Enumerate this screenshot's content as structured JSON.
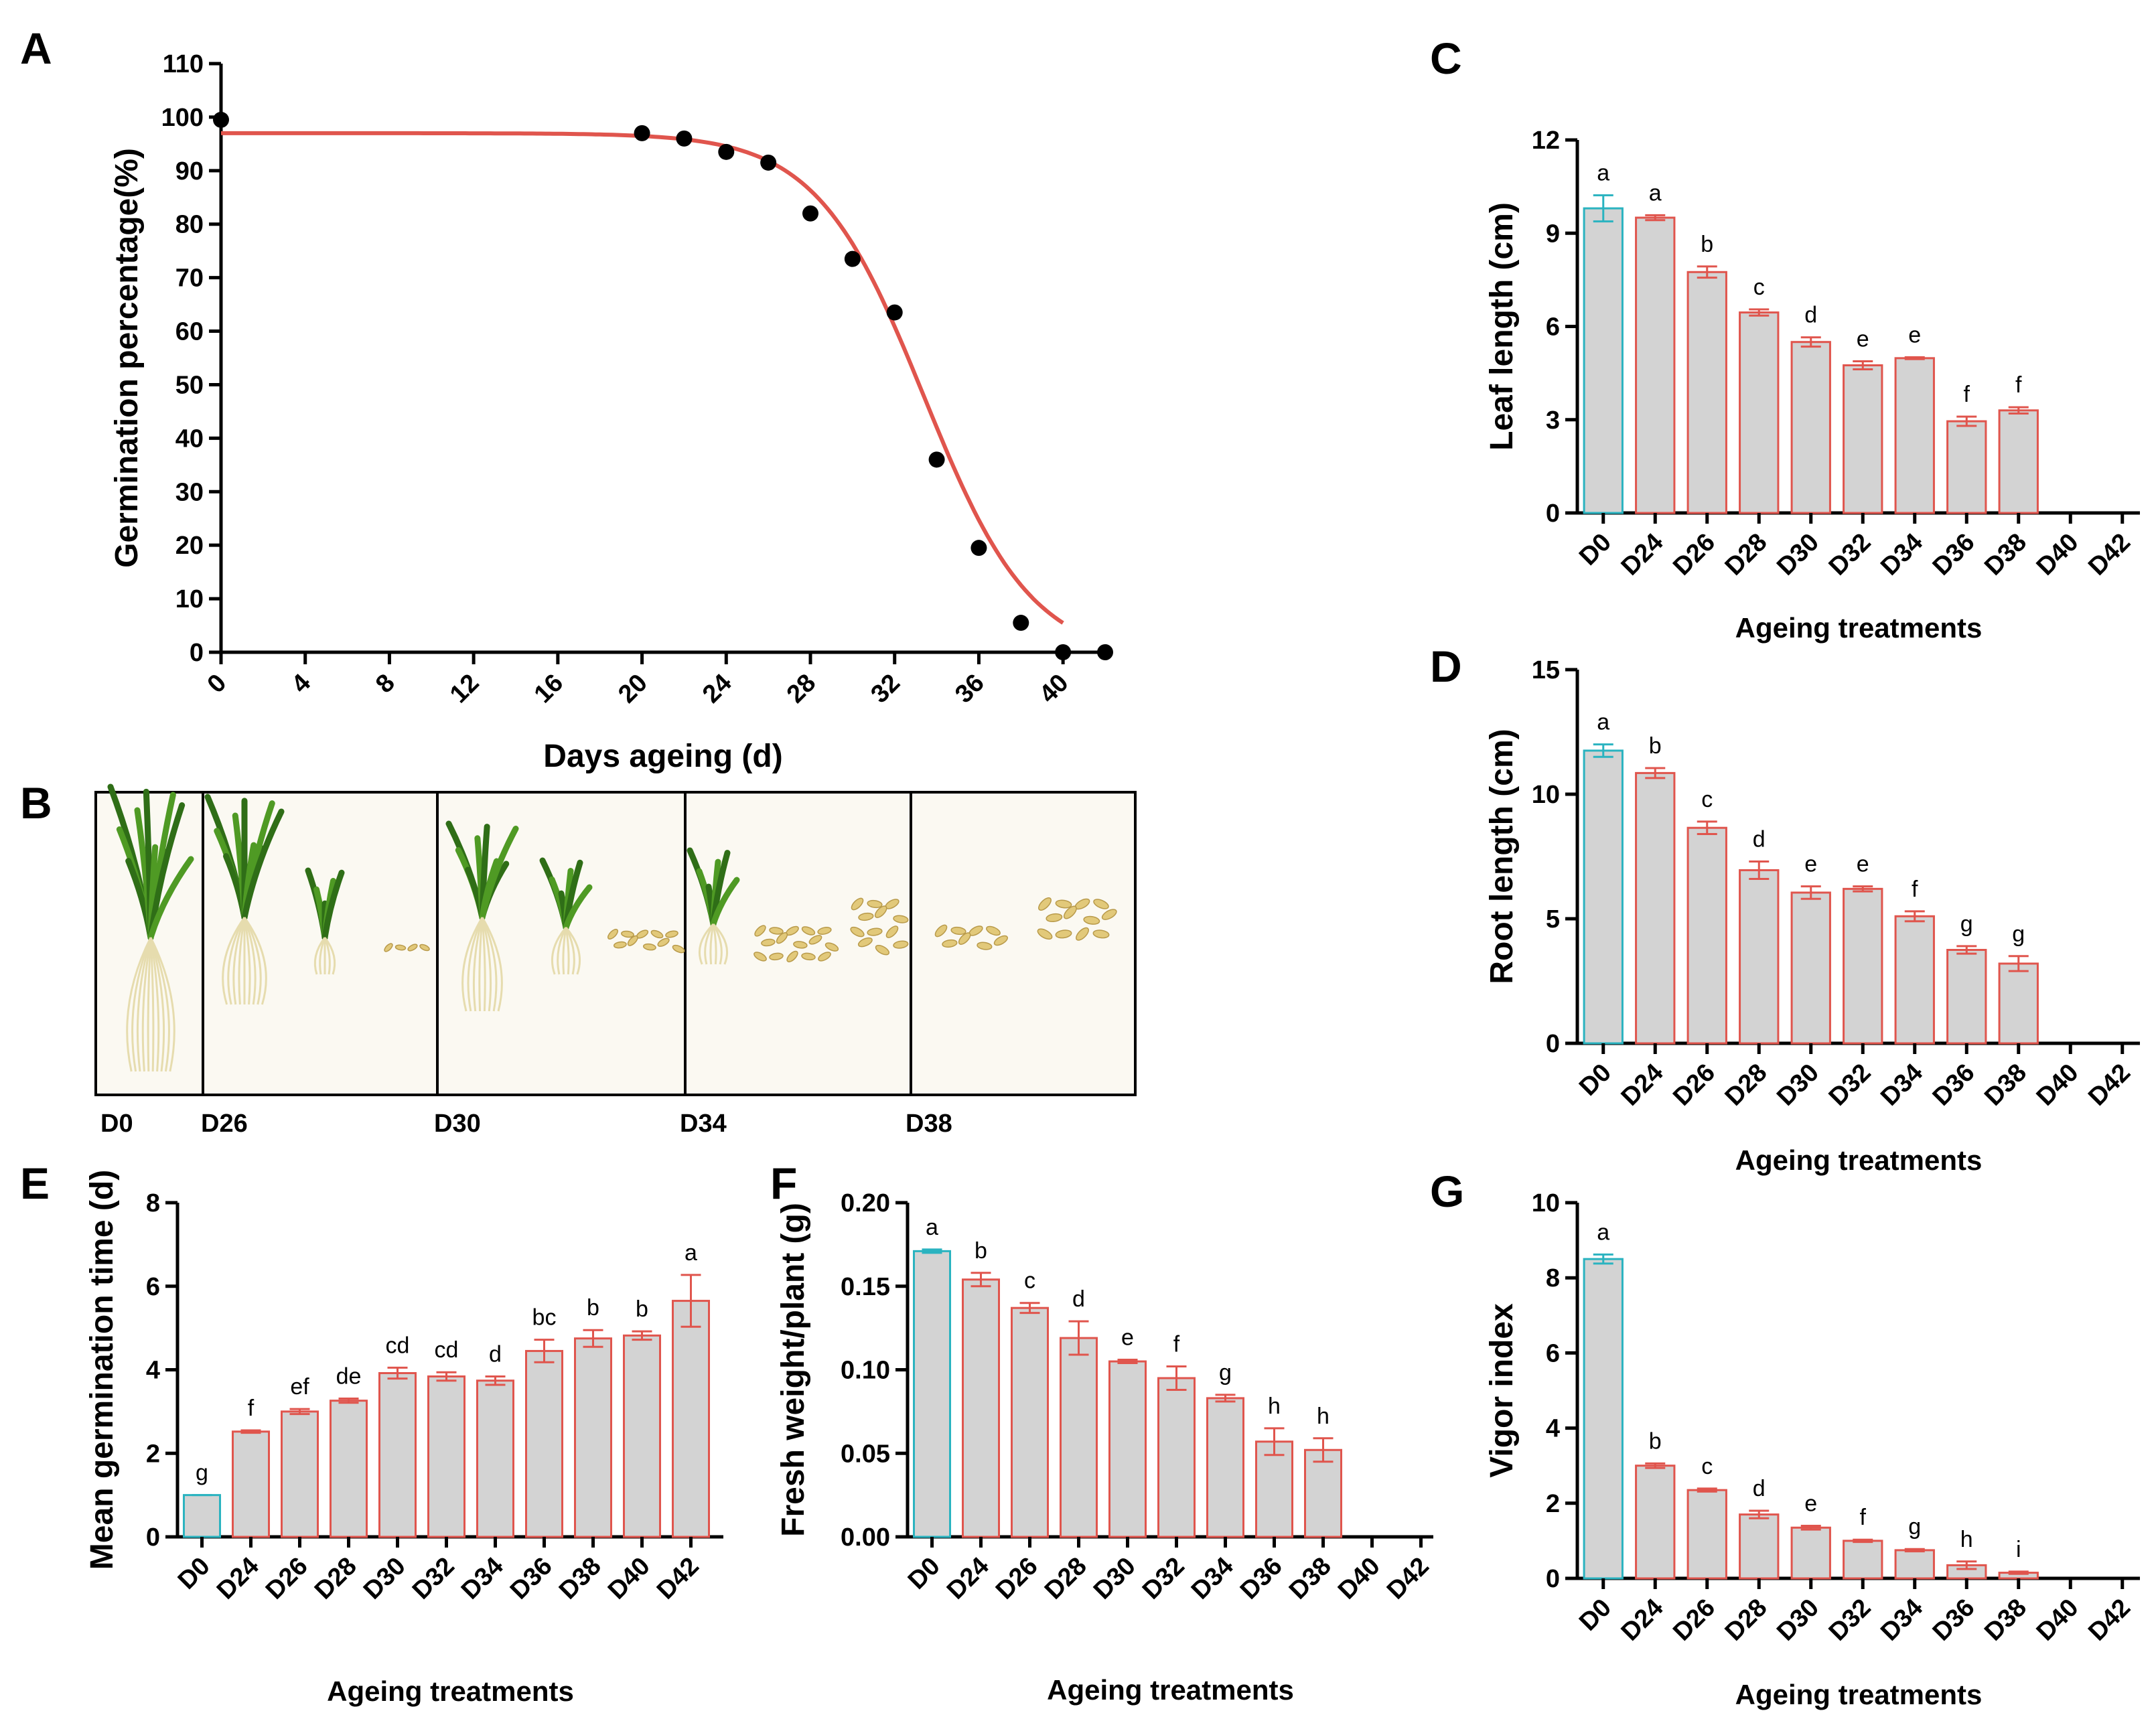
{
  "panel_labels": [
    "A",
    "B",
    "C",
    "D",
    "E",
    "F",
    "G"
  ],
  "chart_data": [
    {
      "id": "A",
      "type": "scatter",
      "title": "",
      "xlabel": "Days ageing (d)",
      "ylabel": "Germination percentage(%)",
      "xlim": [
        0,
        42
      ],
      "ylim": [
        0,
        110
      ],
      "xticks": [
        0,
        4,
        8,
        12,
        16,
        20,
        24,
        28,
        32,
        36,
        40
      ],
      "yticks": [
        0,
        10,
        20,
        30,
        40,
        50,
        60,
        70,
        80,
        90,
        100,
        110
      ],
      "x": [
        0,
        20,
        22,
        24,
        26,
        28,
        30,
        32,
        34,
        36,
        38,
        40,
        42
      ],
      "y": [
        99.5,
        97,
        96,
        93.5,
        91.5,
        82,
        73.5,
        63.5,
        36,
        19.5,
        5.5,
        0,
        0
      ],
      "fit": {
        "type": "logistic",
        "top": 97,
        "bottom": -1.5,
        "x50": 33.4,
        "slope": 0.39
      },
      "point_color": "#000000",
      "line_color": "#e0554d"
    },
    {
      "id": "C",
      "type": "bar",
      "xlabel": "Ageing treatments",
      "ylabel": "Leaf length (cm)",
      "ylim": [
        0,
        12
      ],
      "yticks": [
        0,
        3,
        6,
        9,
        12
      ],
      "categories": [
        "D0",
        "D24",
        "D26",
        "D28",
        "D30",
        "D32",
        "D34",
        "D36",
        "D38",
        "D40",
        "D42"
      ],
      "values": [
        9.8,
        9.5,
        7.75,
        6.45,
        5.5,
        4.75,
        4.98,
        2.95,
        3.3,
        0,
        0
      ],
      "errors": [
        0.42,
        0.08,
        0.18,
        0.1,
        0.15,
        0.13,
        0.03,
        0.15,
        0.1,
        0,
        0
      ],
      "letters": [
        "a",
        "a",
        "b",
        "c",
        "d",
        "e",
        "e",
        "f",
        "f",
        "",
        ""
      ]
    },
    {
      "id": "D",
      "type": "bar",
      "xlabel": "Ageing treatments",
      "ylabel": "Root length (cm)",
      "ylim": [
        0,
        15
      ],
      "yticks": [
        0,
        5,
        10,
        15
      ],
      "categories": [
        "D0",
        "D24",
        "D26",
        "D28",
        "D30",
        "D32",
        "D34",
        "D36",
        "D38",
        "D40",
        "D42"
      ],
      "values": [
        11.75,
        10.85,
        8.65,
        6.95,
        6.05,
        6.2,
        5.1,
        3.75,
        3.2,
        0,
        0
      ],
      "errors": [
        0.25,
        0.2,
        0.25,
        0.35,
        0.25,
        0.1,
        0.2,
        0.15,
        0.3,
        0,
        0
      ],
      "letters": [
        "a",
        "b",
        "c",
        "d",
        "e",
        "e",
        "f",
        "g",
        "g",
        "",
        ""
      ]
    },
    {
      "id": "E",
      "type": "bar",
      "xlabel": "Ageing treatments",
      "ylabel": "Mean germination time (d)",
      "ylim": [
        0,
        8
      ],
      "yticks": [
        0,
        2,
        4,
        6,
        8
      ],
      "categories": [
        "D0",
        "D24",
        "D26",
        "D28",
        "D30",
        "D32",
        "D34",
        "D36",
        "D38",
        "D40",
        "D42"
      ],
      "values": [
        1.0,
        2.52,
        3.0,
        3.26,
        3.92,
        3.84,
        3.74,
        4.45,
        4.75,
        4.82,
        5.65
      ],
      "errors": [
        0.0,
        0.03,
        0.06,
        0.05,
        0.13,
        0.1,
        0.1,
        0.27,
        0.2,
        0.1,
        0.62
      ],
      "letters": [
        "g",
        "f",
        "ef",
        "de",
        "cd",
        "cd",
        "d",
        "bc",
        "b",
        "b",
        "a"
      ]
    },
    {
      "id": "F",
      "type": "bar",
      "xlabel": "Ageing treatments",
      "ylabel": "Fresh weight/plant (g)",
      "ylim": [
        0,
        0.2
      ],
      "yticks": [
        0.0,
        0.05,
        0.1,
        0.15,
        0.2
      ],
      "ytick_labels": [
        "0.00",
        "0.05",
        "0.10",
        "0.15",
        "0.20"
      ],
      "categories": [
        "D0",
        "D24",
        "D26",
        "D28",
        "D30",
        "D32",
        "D34",
        "D36",
        "D38",
        "D40",
        "D42"
      ],
      "values": [
        0.171,
        0.154,
        0.137,
        0.119,
        0.105,
        0.095,
        0.083,
        0.057,
        0.052,
        0,
        0
      ],
      "errors": [
        0.001,
        0.004,
        0.003,
        0.01,
        0.001,
        0.007,
        0.002,
        0.008,
        0.007,
        0,
        0
      ],
      "letters": [
        "a",
        "b",
        "c",
        "d",
        "e",
        "f",
        "g",
        "h",
        "h",
        "",
        ""
      ]
    },
    {
      "id": "G",
      "type": "bar",
      "xlabel": "Ageing treatments",
      "ylabel": "Vigor index",
      "ylim": [
        0,
        10
      ],
      "yticks": [
        0,
        2,
        4,
        6,
        8,
        10
      ],
      "categories": [
        "D0",
        "D24",
        "D26",
        "D28",
        "D30",
        "D32",
        "D34",
        "D36",
        "D38",
        "D40",
        "D42"
      ],
      "values": [
        8.5,
        3.0,
        2.35,
        1.7,
        1.35,
        1.0,
        0.75,
        0.35,
        0.15,
        0,
        0
      ],
      "errors": [
        0.12,
        0.06,
        0.04,
        0.1,
        0.05,
        0.03,
        0.03,
        0.1,
        0.03,
        0,
        0
      ],
      "letters": [
        "a",
        "b",
        "c",
        "d",
        "e",
        "f",
        "g",
        "h",
        "i",
        "",
        ""
      ]
    }
  ],
  "photo_panel": {
    "captions": [
      "D0",
      "D26",
      "D30",
      "D34",
      "D38"
    ]
  },
  "colors": {
    "control": "#2ab3c0",
    "treatment": "#e0554d",
    "bar_fill": "#d3d3d3",
    "axis": "#000000"
  }
}
